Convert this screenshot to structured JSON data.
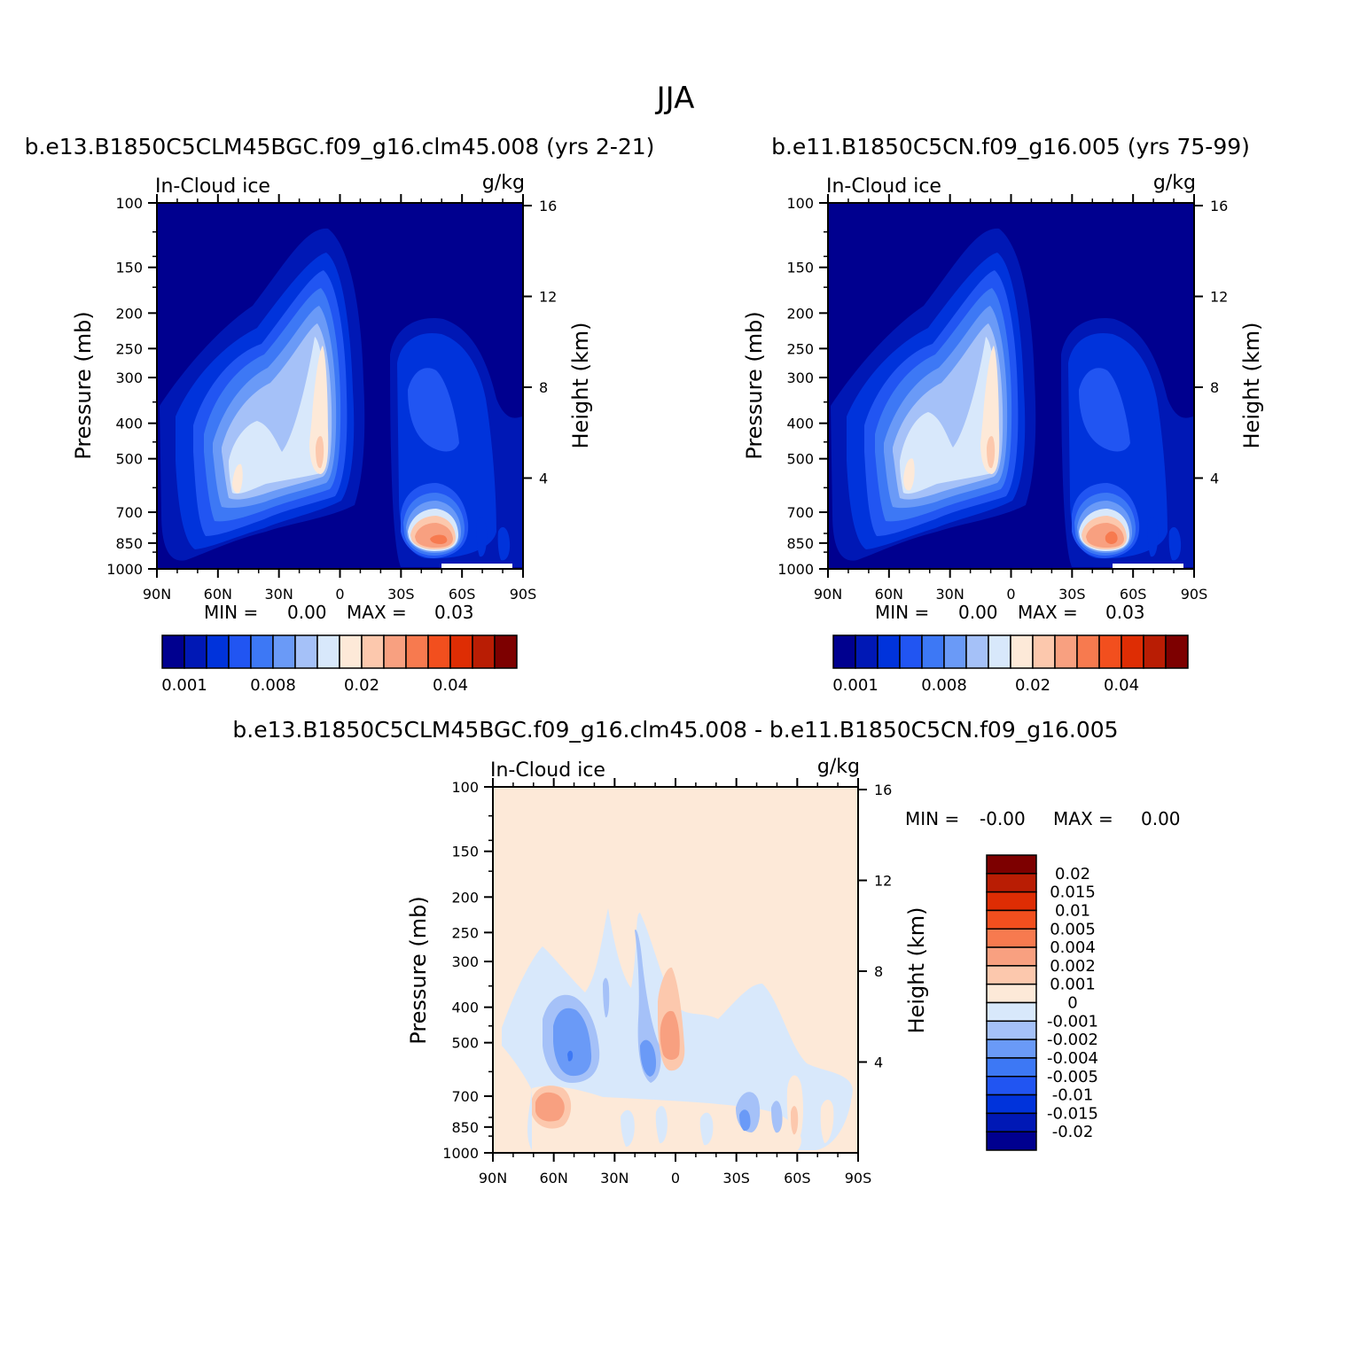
{
  "figure": {
    "title": "JJA"
  },
  "colors": {
    "abs_scale": [
      "#00008f",
      "#0018b5",
      "#0033db",
      "#2155f2",
      "#3d78f5",
      "#6a9af7",
      "#a5c1f8",
      "#d8e8fb",
      "#fde9d8",
      "#fcc8ad",
      "#f8a080",
      "#f77a4f",
      "#f24f1e",
      "#de2d04",
      "#b91d04",
      "#7d0000"
    ],
    "diff_scale": [
      "#7d0000",
      "#b91d04",
      "#de2d04",
      "#f24f1e",
      "#f77a4f",
      "#f8a080",
      "#fcc8ad",
      "#fde9d8",
      "#d8e8fb",
      "#a5c1f8",
      "#6a9af7",
      "#3d78f5",
      "#2155f2",
      "#0033db",
      "#0018b5",
      "#00008f"
    ]
  },
  "chart_data": [
    {
      "type": "contour",
      "id": "panel-left",
      "title": "b.e13.B1850C5CLM45BGC.f09_g16.clm45.008 (yrs 2-21)",
      "left_label": "In-Cloud ice",
      "right_label": "g/kg",
      "ylabel": "Pressure (mb)",
      "ylabel_right": "Height (km)",
      "x_ticks": [
        "90N",
        "60N",
        "30N",
        "0",
        "30S",
        "60S",
        "90S"
      ],
      "y_ticks": [
        100,
        150,
        200,
        250,
        300,
        400,
        500,
        700,
        850,
        1000
      ],
      "height_ticks": [
        16,
        12,
        8,
        4
      ],
      "min_label": "MIN =",
      "min_value": "0.00",
      "max_label": "MAX =",
      "max_value": "0.03",
      "colorbar_labels": [
        "0.001",
        "0.008",
        "0.02",
        "0.04"
      ]
    },
    {
      "type": "contour",
      "id": "panel-right",
      "title": "b.e11.B1850C5CN.f09_g16.005 (yrs 75-99)",
      "left_label": "In-Cloud ice",
      "right_label": "g/kg",
      "ylabel": "Pressure (mb)",
      "ylabel_right": "Height (km)",
      "x_ticks": [
        "90N",
        "60N",
        "30N",
        "0",
        "30S",
        "60S",
        "90S"
      ],
      "y_ticks": [
        100,
        150,
        200,
        250,
        300,
        400,
        500,
        700,
        850,
        1000
      ],
      "height_ticks": [
        16,
        12,
        8,
        4
      ],
      "min_label": "MIN =",
      "min_value": "0.00",
      "max_label": "MAX =",
      "max_value": "0.03",
      "colorbar_labels": [
        "0.001",
        "0.008",
        "0.02",
        "0.04"
      ]
    },
    {
      "type": "contour",
      "id": "panel-diff",
      "title": "b.e13.B1850C5CLM45BGC.f09_g16.clm45.008 - b.e11.B1850C5CN.f09_g16.005",
      "left_label": "In-Cloud ice",
      "right_label": "g/kg",
      "ylabel": "Pressure (mb)",
      "ylabel_right": "Height (km)",
      "x_ticks": [
        "90N",
        "60N",
        "30N",
        "0",
        "30S",
        "60S",
        "90S"
      ],
      "y_ticks": [
        100,
        150,
        200,
        250,
        300,
        400,
        500,
        700,
        850,
        1000
      ],
      "height_ticks": [
        16,
        12,
        8,
        4
      ],
      "min_label": "MIN =",
      "min_value": "-0.00",
      "max_label": "MAX =",
      "max_value": "0.00",
      "colorbar_labels": [
        "0.02",
        "0.015",
        "0.01",
        "0.005",
        "0.004",
        "0.002",
        "0.001",
        "0",
        "-0.001",
        "-0.002",
        "-0.004",
        "-0.005",
        "-0.01",
        "-0.015",
        "-0.02"
      ]
    }
  ]
}
